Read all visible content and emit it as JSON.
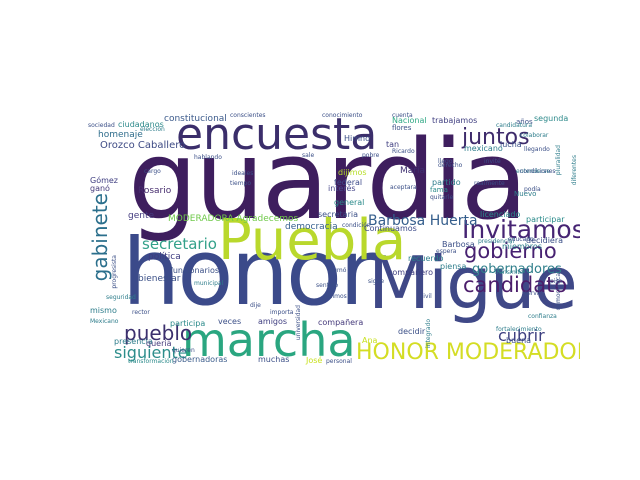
{
  "words": [
    {
      "text": "guardia",
      "color": "#3e1e5e"
    },
    {
      "text": "honor",
      "color": "#3b4a8a"
    },
    {
      "text": "Miguel",
      "color": "#3f4887"
    },
    {
      "text": "Puebla",
      "color": "#b9d82c"
    },
    {
      "text": "encuesta",
      "color": "#3b2e6b"
    },
    {
      "text": "marcha",
      "color": "#2aa680"
    },
    {
      "text": "HONOR MODERADORA",
      "color": "#d4dd24"
    },
    {
      "text": "Invitamos",
      "color": "#462473"
    },
    {
      "text": "candidato",
      "color": "#4b1d6b"
    },
    {
      "text": "juntos",
      "color": "#3e2b6b"
    },
    {
      "text": "gobierno",
      "color": "#472171"
    },
    {
      "text": "pueblo",
      "color": "#3b2f6d"
    },
    {
      "text": "gabinete",
      "color": "#2b6f8c"
    },
    {
      "text": "secretario",
      "color": "#33a18a"
    },
    {
      "text": "siguiente",
      "color": "#2c8d8b"
    },
    {
      "text": "cubrir",
      "color": "#3d3f80"
    },
    {
      "text": "Barbosa Huerta",
      "color": "#355e8c"
    },
    {
      "text": "gobernadores",
      "color": "#2f7f8b"
    },
    {
      "text": "MODERADORA Agradecemos",
      "color": "#70c94b"
    },
    {
      "text": "democracia",
      "color": "#355f8d"
    },
    {
      "text": "Orozco Caballero",
      "color": "#3d4a84"
    },
    {
      "text": "Rosario",
      "color": "#472d6e"
    },
    {
      "text": "gente",
      "color": "#433b7f"
    },
    {
      "text": "política",
      "color": "#3e3c80"
    },
    {
      "text": "bienestar",
      "color": "#3a4f86"
    },
    {
      "text": "funcionarios",
      "color": "#3a4f86"
    },
    {
      "text": "homenaje",
      "color": "#2f6d8c"
    },
    {
      "text": "constitucional",
      "color": "#3b5a8b"
    },
    {
      "text": "ciudadanos",
      "color": "#2e8a8b"
    },
    {
      "text": "Nacional",
      "color": "#2fa884"
    },
    {
      "text": "trabajamos",
      "color": "#3f3e80"
    },
    {
      "text": "federal",
      "color": "#3e4c8a"
    },
    {
      "text": "interés",
      "color": "#4a4a8c"
    },
    {
      "text": "general",
      "color": "#2a8a8a"
    },
    {
      "text": "secretaria",
      "color": "#3b4f87"
    },
    {
      "text": "Continuamos",
      "color": "#3c4a88"
    },
    {
      "text": "recuerdo",
      "color": "#2e7d8b"
    },
    {
      "text": "compañero",
      "color": "#3f3e80"
    },
    {
      "text": "compañera",
      "color": "#453a7b"
    },
    {
      "text": "gobernadoras",
      "color": "#3b5c8b"
    },
    {
      "text": "participar",
      "color": "#2a8a8a"
    },
    {
      "text": "decidir",
      "color": "#3b4f87"
    },
    {
      "text": "buena",
      "color": "#3c4e88"
    },
    {
      "text": "presencia",
      "color": "#2e7d8b"
    },
    {
      "text": "muchas",
      "color": "#3b4f87"
    },
    {
      "text": "veces",
      "color": "#3b4f87"
    },
    {
      "text": "amigos",
      "color": "#3f3e80"
    },
    {
      "text": "partido",
      "color": "#2e7d8b"
    },
    {
      "text": "María",
      "color": "#3e2f70"
    },
    {
      "text": "lucha",
      "color": "#3b4f87"
    },
    {
      "text": "mexicano",
      "color": "#2e7d8b"
    },
    {
      "text": "dijimos",
      "color": "#b8de29"
    },
    {
      "text": "decidiera",
      "color": "#3b4f87"
    },
    {
      "text": "Gómez",
      "color": "#3f3e80"
    },
    {
      "text": "ganó",
      "color": "#453a7b"
    },
    {
      "text": "queria",
      "color": "#453a7b"
    },
    {
      "text": "José",
      "color": "#c9e11f"
    },
    {
      "text": "Ana",
      "color": "#c9e11f"
    },
    {
      "text": "segunda",
      "color": "#2e8a8b"
    },
    {
      "text": "licenciado",
      "color": "#2a8a8a"
    },
    {
      "text": "piensa",
      "color": "#2e7d8b"
    },
    {
      "text": "Barbosa",
      "color": "#3b4f87"
    },
    {
      "text": "participa",
      "color": "#2a8a8a"
    },
    {
      "text": "flores",
      "color": "#3b4f87"
    },
    {
      "text": "Himno",
      "color": "#3b4f87"
    },
    {
      "text": "tan",
      "color": "#3f3e80"
    },
    {
      "text": "años",
      "color": "#3b4f87"
    },
    {
      "text": "miembros",
      "color": "#2e7d8b"
    },
    {
      "text": "fama",
      "color": "#2a8a8a"
    },
    {
      "text": "Nuevo",
      "color": "#2e7d8b"
    },
    {
      "text": "Ricardo",
      "color": "#3b4f87"
    },
    {
      "text": "aceptara",
      "color": "#3b4f87"
    },
    {
      "text": "dije",
      "color": "#3b4f87"
    },
    {
      "text": "sigue",
      "color": "#3b4f87"
    },
    {
      "text": "cuenta",
      "color": "#3b4f87"
    },
    {
      "text": "quieren",
      "color": "#3b4f87"
    },
    {
      "text": "Mexicano",
      "color": "#2e7d8b"
    },
    {
      "text": "salimos",
      "color": "#3b4f87"
    },
    {
      "text": "sumó",
      "color": "#3b4f87"
    },
    {
      "text": "piso",
      "color": "#3b4f87"
    },
    {
      "text": "civil",
      "color": "#3b4f87"
    },
    {
      "text": "servil",
      "color": "#3b4f87"
    },
    {
      "text": "rector",
      "color": "#3b4f87"
    },
    {
      "text": "tiempo",
      "color": "#3b4f87"
    },
    {
      "text": "hablando",
      "color": "#3b4f87"
    },
    {
      "text": "sale",
      "color": "#3b4f87"
    },
    {
      "text": "pobre",
      "color": "#3b4f87"
    },
    {
      "text": "derecho",
      "color": "#3b4f87"
    },
    {
      "text": "podía",
      "color": "#3b4f87"
    },
    {
      "text": "invité",
      "color": "#3b4f87"
    },
    {
      "text": "llego",
      "color": "#3b4f87"
    },
    {
      "text": "realmente",
      "color": "#3b4f87"
    },
    {
      "text": "quitarle",
      "color": "#3b4f87"
    },
    {
      "text": "confianza",
      "color": "#2e7d8b"
    },
    {
      "text": "mismo",
      "color": "#2e7d8b"
    },
    {
      "text": "transformación",
      "color": "#2a8a8a"
    },
    {
      "text": "personal",
      "color": "#3b4f87"
    },
    {
      "text": "universidad",
      "color": "#3b4f87"
    },
    {
      "text": "sociedad",
      "color": "#3b4f87"
    },
    {
      "text": "cargo",
      "color": "#3b4f87"
    },
    {
      "text": "candidatura",
      "color": "#2e7d8b"
    },
    {
      "text": "presidencial",
      "color": "#2e7d8b"
    },
    {
      "text": "importa",
      "color": "#3b4f87"
    },
    {
      "text": "espera",
      "color": "#3b4f87"
    },
    {
      "text": "ideales",
      "color": "#3b4f87"
    },
    {
      "text": "conocimiento",
      "color": "#3b4f87"
    },
    {
      "text": "conscientes",
      "color": "#3b4f87"
    },
    {
      "text": "condición",
      "color": "#3b4f87"
    },
    {
      "text": "entenderse",
      "color": "#2e7d8b"
    },
    {
      "text": "colaborar",
      "color": "#2e7d8b"
    },
    {
      "text": "elección",
      "color": "#2e7d8b"
    },
    {
      "text": "progresista",
      "color": "#3b4f87"
    },
    {
      "text": "municipal",
      "color": "#2e7d8b"
    },
    {
      "text": "democrática",
      "color": "#3b4f87"
    },
    {
      "text": "educado",
      "color": "#3b4f87"
    },
    {
      "text": "llegando",
      "color": "#3b4f87"
    },
    {
      "text": "condiciones",
      "color": "#3b4f87"
    },
    {
      "text": "fortalecimiento",
      "color": "#2e7d8b"
    },
    {
      "text": "seguridad",
      "color": "#2e7d8b"
    },
    {
      "text": "Transmite",
      "color": "#2e7d8b"
    },
    {
      "text": "integrado",
      "color": "#2e7d8b"
    },
    {
      "text": "pluralidad",
      "color": "#2e7d8b"
    },
    {
      "text": "sentido",
      "color": "#3b4f87"
    },
    {
      "text": "diferentes",
      "color": "#2e7d8b"
    }
  ]
}
